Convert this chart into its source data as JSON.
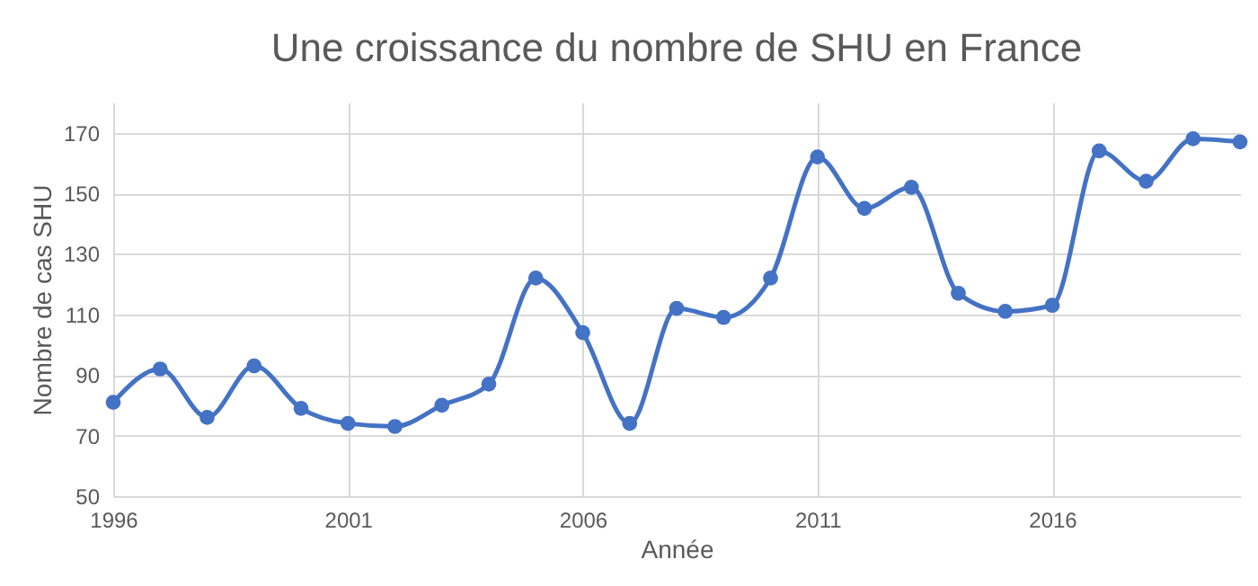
{
  "chart_data": {
    "type": "line",
    "title": "Une croissance du nombre de SHU en France",
    "xlabel": "Année",
    "ylabel": "Nombre de cas  SHU",
    "x": [
      1996,
      1997,
      1998,
      1999,
      2000,
      2001,
      2002,
      2003,
      2004,
      2005,
      2006,
      2007,
      2008,
      2009,
      2010,
      2011,
      2012,
      2013,
      2014,
      2015,
      2016,
      2017,
      2018,
      2019,
      2020
    ],
    "series": [
      {
        "color": "#4472c4",
        "values": [
          81,
          92,
          76,
          93,
          79,
          74,
          73,
          80,
          87,
          122,
          104,
          74,
          112,
          109,
          122,
          162,
          145,
          152,
          117,
          111,
          113,
          164,
          154,
          168,
          167
        ]
      }
    ],
    "xlim": [
      1996,
      2020
    ],
    "xticks": [
      1996,
      2001,
      2006,
      2011,
      2016
    ],
    "ylim": [
      50,
      180
    ],
    "yticks": [
      50,
      70,
      90,
      110,
      130,
      150,
      170
    ],
    "grid": true,
    "marker": "circle",
    "legend": false
  }
}
